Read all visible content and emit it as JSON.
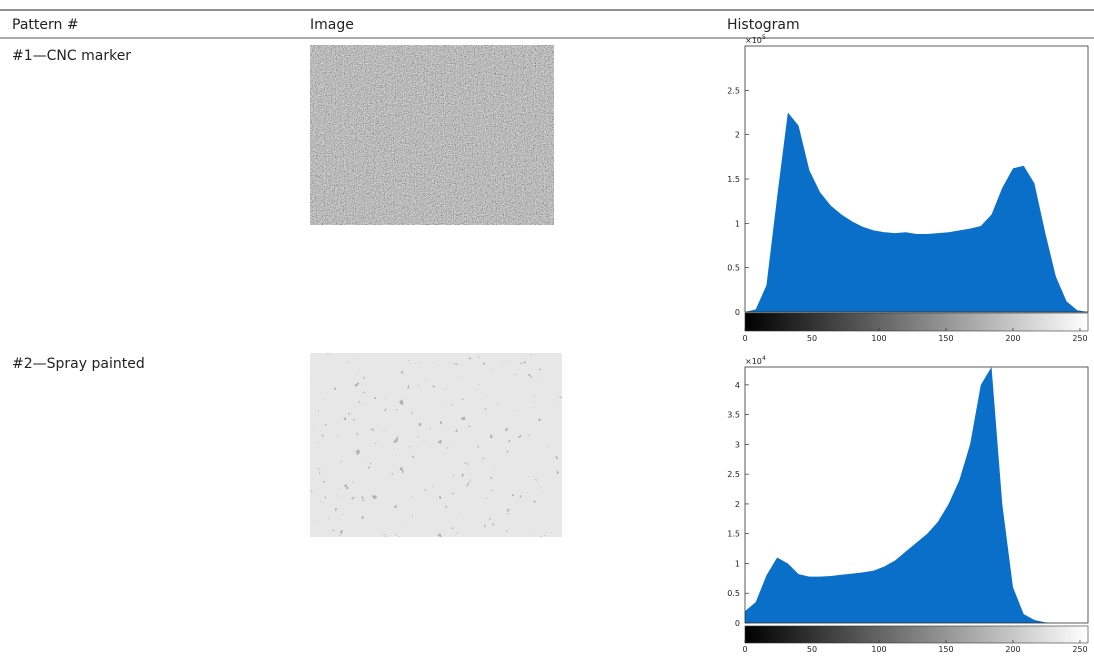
{
  "table": {
    "headers": [
      "Pattern #",
      "Image",
      "Histogram"
    ],
    "rows": [
      [
        "#1—CNC marker"
      ],
      [
        "#2—Spray painted"
      ]
    ]
  },
  "chart_data": [
    {
      "type": "area",
      "color": "#0a6fc9",
      "y_multiplier": {
        "base": "×10",
        "exponent": "5"
      },
      "x": [
        0,
        8,
        16,
        24,
        32,
        40,
        48,
        56,
        64,
        72,
        80,
        88,
        96,
        104,
        112,
        120,
        128,
        136,
        144,
        152,
        160,
        168,
        176,
        184,
        192,
        200,
        208,
        216,
        224,
        232,
        240,
        248,
        256
      ],
      "values": [
        0,
        0.03,
        0.3,
        1.3,
        2.25,
        2.1,
        1.6,
        1.35,
        1.2,
        1.1,
        1.02,
        0.96,
        0.92,
        0.9,
        0.89,
        0.9,
        0.88,
        0.88,
        0.89,
        0.9,
        0.92,
        0.94,
        0.97,
        1.1,
        1.4,
        1.62,
        1.65,
        1.45,
        0.9,
        0.4,
        0.12,
        0.02,
        0
      ],
      "xlim": [
        0,
        256
      ],
      "xticks": [
        0,
        50,
        100,
        150,
        200,
        250
      ],
      "ylim": [
        0,
        3
      ],
      "yticks": [
        0,
        0.5,
        1,
        1.5,
        2,
        2.5
      ]
    },
    {
      "type": "area",
      "color": "#0a6fc9",
      "y_multiplier": {
        "base": "×10",
        "exponent": "4"
      },
      "x": [
        0,
        8,
        16,
        24,
        32,
        40,
        48,
        56,
        64,
        72,
        80,
        88,
        96,
        104,
        112,
        120,
        128,
        136,
        144,
        152,
        160,
        168,
        176,
        184,
        192,
        200,
        208,
        216,
        224,
        232,
        240,
        248,
        256
      ],
      "values": [
        0.2,
        0.35,
        0.8,
        1.1,
        1.0,
        0.82,
        0.78,
        0.78,
        0.79,
        0.81,
        0.83,
        0.85,
        0.88,
        0.95,
        1.05,
        1.2,
        1.35,
        1.5,
        1.7,
        2.0,
        2.4,
        3.0,
        4.0,
        4.3,
        2.0,
        0.6,
        0.15,
        0.05,
        0.01,
        0,
        0,
        0,
        0
      ],
      "xlim": [
        0,
        256
      ],
      "xticks": [
        0,
        50,
        100,
        150,
        200,
        250
      ],
      "ylim": [
        0,
        4.3
      ],
      "yticks": [
        0,
        0.5,
        1,
        1.5,
        2,
        2.5,
        3,
        3.5,
        4
      ]
    }
  ]
}
